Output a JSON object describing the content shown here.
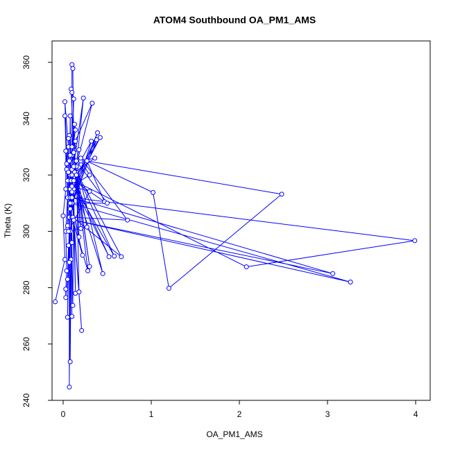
{
  "chart_data": {
    "type": "line",
    "markers": true,
    "title": "ATOM4 Southbound OA_PM1_AMS",
    "x_label": "OA_PM1_AMS",
    "y_label": "Theta (K)",
    "color": "#0000ff",
    "xlim": [
      -0.126,
      4.165
    ],
    "ylim": [
      240,
      367.6
    ],
    "xticks": [
      0,
      1,
      2,
      3,
      4
    ],
    "yticks": [
      240,
      260,
      280,
      300,
      320,
      340,
      360
    ],
    "x": [
      -0.09,
      0.02,
      0.0,
      0.03,
      0.03,
      0.04,
      0.02,
      0.05,
      0.02,
      0.06,
      0.04,
      0.05,
      0.03,
      0.04,
      0.03,
      0.03,
      0.05,
      0.06,
      0.05,
      0.07,
      0.07,
      0.08,
      0.08,
      0.09,
      0.1,
      0.08,
      0.11,
      0.12,
      0.14,
      0.1,
      0.1,
      0.11,
      0.12,
      0.09,
      0.1,
      0.12,
      0.1,
      0.13,
      0.14,
      0.11,
      0.33,
      0.08,
      0.23,
      0.15,
      0.18,
      0.07,
      0.21,
      0.09,
      0.07,
      0.1,
      0.39,
      0.1,
      0.42,
      0.12,
      0.38,
      0.08,
      0.32,
      0.13,
      0.36,
      0.2,
      0.3,
      0.1,
      0.3,
      0.06,
      0.27,
      0.1,
      0.2,
      0.14,
      0.18,
      0.08,
      0.22,
      0.1,
      0.28,
      0.15,
      0.3,
      0.12,
      0.45,
      0.1,
      0.52,
      0.09,
      0.58,
      0.12,
      0.66,
      0.11,
      0.73,
      0.2,
      1.02,
      1.2,
      2.48,
      0.27,
      0.47,
      0.12,
      2.08,
      3.99,
      0.1,
      3.06,
      0.12,
      3.26,
      0.08,
      0.5,
      0.15,
      0.18,
      0.08,
      0.14,
      0.05,
      0.06,
      0.07,
      0.08,
      0.1,
      0.06
    ],
    "y": [
      275,
      290,
      305.5,
      315,
      328.5,
      322,
      341,
      318,
      346,
      330,
      324,
      312,
      300,
      286,
      279.5,
      276.5,
      283,
      295,
      269.5,
      305,
      244.7,
      300,
      253.7,
      290,
      269.8,
      320,
      273.7,
      315,
      278,
      327,
      359.2,
      357.8,
      330,
      350.5,
      349.3,
      347,
      322,
      338,
      336,
      330,
      345.5,
      315,
      347.3,
      323,
      278.5,
      325,
      264.8,
      318,
      334,
      310,
      335,
      314,
      333.3,
      318,
      332.5,
      308,
      332,
      321,
      326,
      325,
      320,
      316,
      314.2,
      300,
      301.5,
      330,
      301,
      325,
      298,
      312,
      291.5,
      305,
      286,
      320,
      287.5,
      328,
      285,
      320,
      291,
      318,
      291.2,
      323,
      291,
      305,
      304,
      326,
      313.8,
      279.8,
      313.2,
      325,
      310.5,
      318,
      287.4,
      296.7,
      312,
      285,
      304,
      282,
      310,
      310,
      325,
      329,
      327,
      332,
      302,
      333,
      289,
      341,
      296,
      321
    ]
  }
}
